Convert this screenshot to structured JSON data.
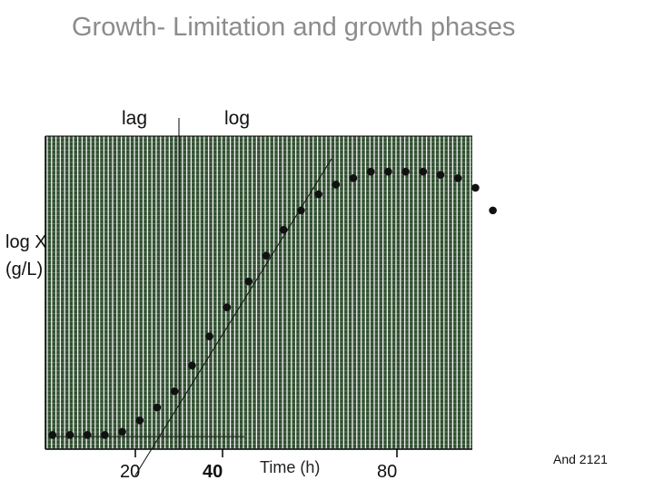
{
  "slide": {
    "title": "Growth- Limitation and growth phases",
    "footer": "And 2121"
  },
  "phases": {
    "lag": "lag",
    "log": "log"
  },
  "chart_data": {
    "type": "scatter",
    "title": "",
    "ylabel_line1": "log X",
    "ylabel_line2": "(g/L)",
    "xlabel": "Time (h)",
    "xticks": [
      {
        "value": 20,
        "label": "20"
      },
      {
        "value": 40,
        "label": "40"
      },
      {
        "value": 80,
        "label": "80"
      }
    ],
    "xlim": [
      0,
      100
    ],
    "ylim": [
      0,
      100
    ],
    "grid": true,
    "colors": {
      "background": "#2f4f2f",
      "gridlines": "#f2f2f2",
      "markers": "#111111"
    },
    "series": [
      {
        "x": [
          1,
          5,
          9,
          13,
          17,
          21,
          25,
          29,
          33,
          37,
          41,
          46,
          50,
          54,
          58,
          62,
          66,
          70,
          74,
          78,
          82,
          86,
          90,
          94,
          98,
          102
        ],
        "y": [
          7.5,
          7.5,
          7.5,
          7.5,
          8.5,
          12,
          16,
          21,
          29,
          38,
          47,
          55,
          63,
          71,
          77,
          82,
          85,
          87,
          89,
          89,
          89,
          89,
          88,
          87,
          84,
          77
        ]
      }
    ],
    "annotations": {
      "lag_phase_boundary_x": 30,
      "log_phase_fit_line": {
        "x": [
          20,
          65
        ],
        "y": [
          -5,
          93
        ]
      },
      "lag_baseline": {
        "x": [
          0,
          45
        ],
        "y": [
          7,
          7
        ]
      }
    }
  }
}
